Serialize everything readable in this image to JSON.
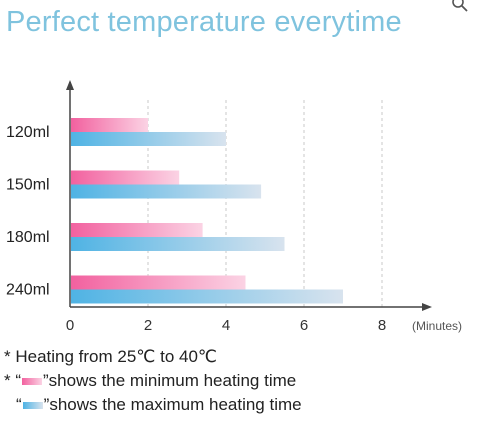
{
  "title": "Perfect temperature everytime",
  "header": {
    "search_icon": "search-icon"
  },
  "colors": {
    "min_start": "#f2619f",
    "min_end": "#fbd3e4",
    "max_start": "#4fb3e4",
    "max_end": "#d8e3ee",
    "title": "#7fc3de"
  },
  "chart_data": {
    "type": "bar",
    "orientation": "horizontal",
    "categories": [
      "120ml",
      "150ml",
      "180ml",
      "240ml"
    ],
    "series": [
      {
        "key": "min",
        "values": [
          2.0,
          2.8,
          3.4,
          4.5
        ]
      },
      {
        "key": "max",
        "values": [
          4.0,
          4.9,
          5.5,
          7.0
        ]
      }
    ],
    "xticks": [
      0,
      2,
      4,
      6,
      8
    ],
    "xlim": [
      0,
      9
    ],
    "unit_label": "(Minutes)",
    "grid": "vertical dashed"
  },
  "notes": {
    "line1": "* Heating from 25℃ to 40℃",
    "line2_prefix": "* “",
    "line2_text": "”shows the minimum heating time",
    "line3_prefix": "“",
    "line3_text": "”shows the maximum heating time"
  }
}
